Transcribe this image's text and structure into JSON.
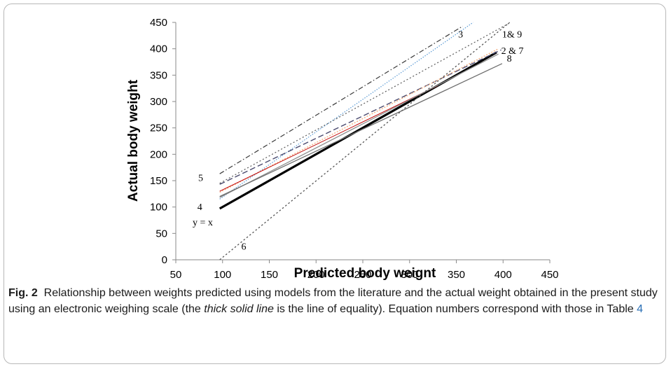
{
  "chart_data": {
    "type": "line",
    "xlabel": "Predicted body weignt",
    "ylabel": "Actual body weight",
    "xlim": [
      50,
      450
    ],
    "ylim": [
      0,
      450
    ],
    "x_ticks": [
      "50",
      "100",
      "150",
      "200",
      "250",
      "300",
      "350",
      "400",
      "450"
    ],
    "y_ticks": [
      "0",
      "50",
      "100",
      "150",
      "200",
      "250",
      "300",
      "350",
      "400",
      "450"
    ],
    "grid": false,
    "series": [
      {
        "name": "y = x",
        "x": [
          97,
          393
        ],
        "y": [
          97,
          393
        ],
        "color": "#000000",
        "dash": "solid",
        "width": 3.2
      },
      {
        "name": "3",
        "x": [
          97,
          368
        ],
        "y": [
          115,
          450
        ],
        "color": "#5b9bd5",
        "dash": "1.5 2",
        "width": 1.2
      },
      {
        "name": "5",
        "x": [
          97,
          357
        ],
        "y": [
          163,
          443
        ],
        "color": "#3a3a3a",
        "dash": "7 3 1.5 3",
        "width": 1.2
      },
      {
        "name": "1& 9",
        "x": [
          97,
          408
        ],
        "y": [
          145,
          450
        ],
        "color": "#5a5a5a",
        "dash": "2 3",
        "width": 1.2
      },
      {
        "name": "2 & 7",
        "x": [
          97,
          398
        ],
        "y": [
          143,
          398
        ],
        "color": "#4a4a6e",
        "dash": "8 4",
        "width": 1.4
      },
      {
        "name": "",
        "x": [
          97,
          395
        ],
        "y": [
          128,
          400
        ],
        "color": "#f4b183",
        "dash": "2 2",
        "width": 1.4
      },
      {
        "name": "",
        "x": [
          97,
          330
        ],
        "y": [
          130,
          330
        ],
        "color": "#c00000",
        "dash": "solid",
        "width": 1.0
      },
      {
        "name": "4",
        "x": [
          97,
          395
        ],
        "y": [
          118,
          390
        ],
        "color": "#8e8e8e",
        "dash": "solid",
        "width": 1.3
      },
      {
        "name": "8",
        "x": [
          97,
          399
        ],
        "y": [
          120,
          372
        ],
        "color": "#6e6e6e",
        "dash": "solid",
        "width": 1.3
      },
      {
        "name": "6",
        "x": [
          97,
          407
        ],
        "y": [
          0,
          450
        ],
        "color": "#555555",
        "dash": "2.5 3",
        "width": 1.3
      }
    ],
    "annotations": [
      {
        "text": "3",
        "x": 352,
        "y": 428
      },
      {
        "text": "1& 9",
        "x": 399,
        "y": 428
      },
      {
        "text": "2 & 7",
        "x": 398,
        "y": 397
      },
      {
        "text": "8",
        "x": 404,
        "y": 382
      },
      {
        "text": "5",
        "x": 74,
        "y": 156
      },
      {
        "text": "4",
        "x": 73,
        "y": 101
      },
      {
        "text": "y = x",
        "x": 68,
        "y": 72
      },
      {
        "text": "6",
        "x": 120,
        "y": 26
      }
    ]
  },
  "caption": {
    "label": "Fig. 2",
    "text_1": "Relationship between weights predicted using models from the literature and the actual weight obtained in the present study using an electronic weighing scale (the ",
    "italic": "thick solid line",
    "text_2": " is the line of equality). Equation numbers correspond with those in Table ",
    "table_ref": "4"
  }
}
